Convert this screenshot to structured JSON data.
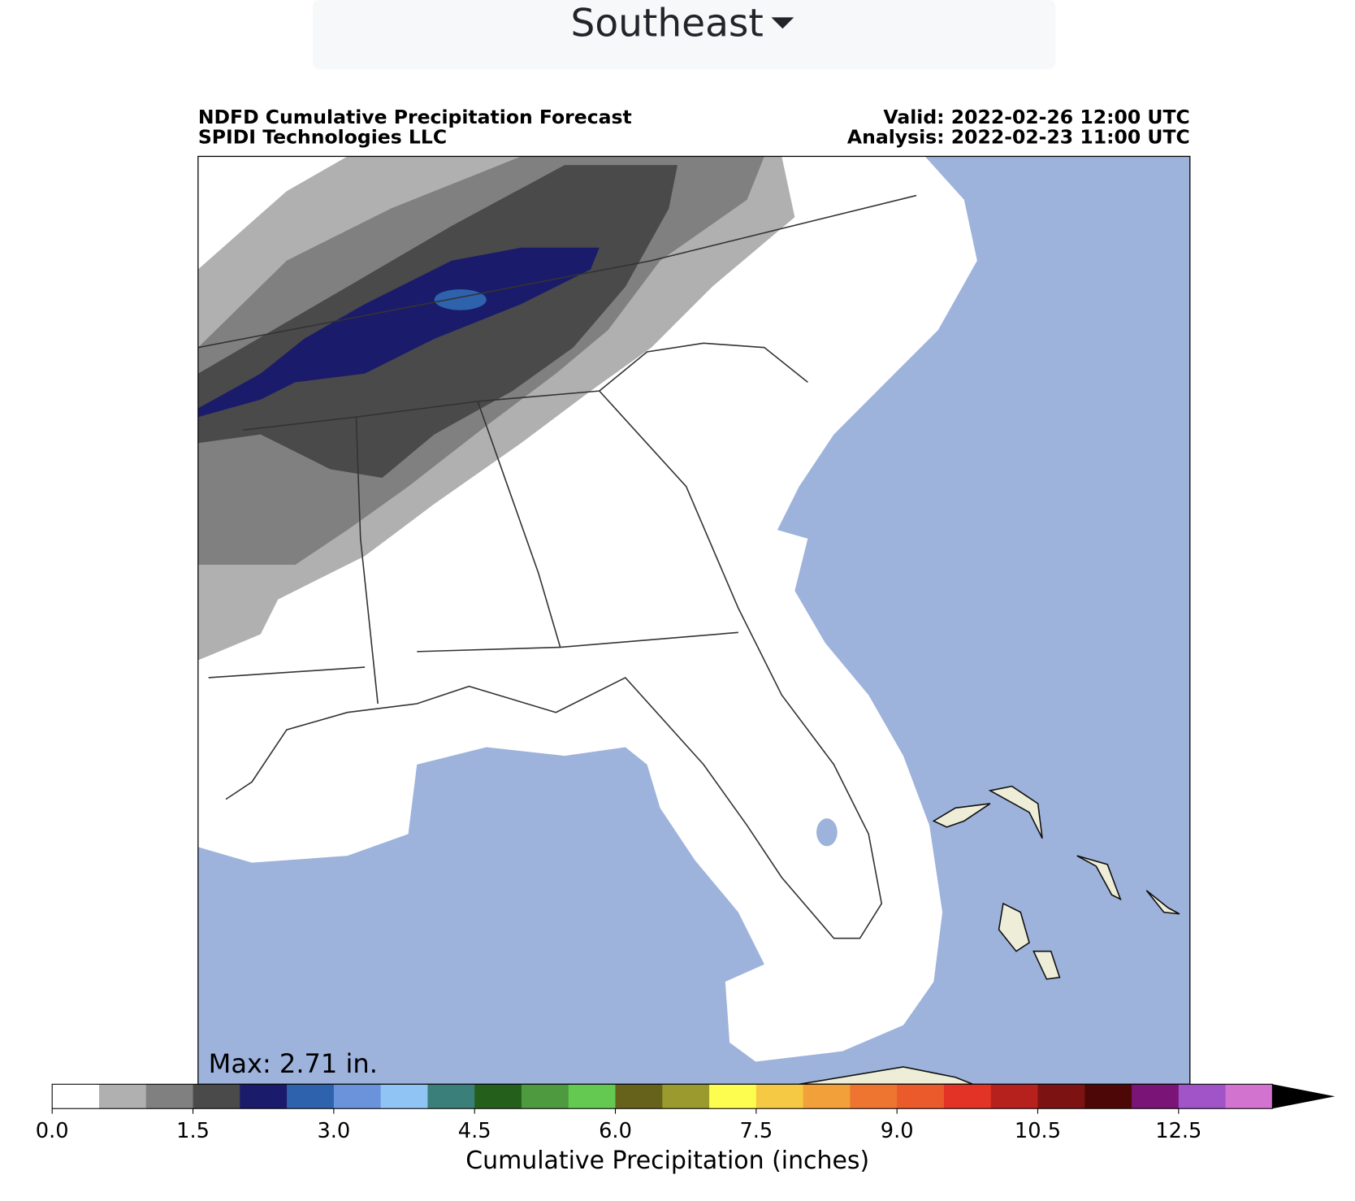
{
  "dropdown": {
    "label": "Southeast"
  },
  "map": {
    "title": "NDFD Cumulative Precipitation Forecast",
    "subtitle": "SPIDI Technologies LLC",
    "valid": "Valid: 2022-02-26 12:00 UTC",
    "analysis": "Analysis: 2022-02-23 11:00 UTC",
    "max_label": "Max: 2.71 in."
  },
  "colorbar": {
    "label": "Cumulative Precipitation (inches)",
    "colors": [
      "#ffffff",
      "#b0b0b0",
      "#808080",
      "#4a4a4a",
      "#1b1b6b",
      "#2e62ad",
      "#6a93dc",
      "#8fc4f5",
      "#3a7f7a",
      "#24601b",
      "#4e9a3e",
      "#64c951",
      "#67621b",
      "#9a9a2e",
      "#fdfd50",
      "#f5c944",
      "#f2a03a",
      "#ee7530",
      "#ea5a2a",
      "#e33326",
      "#b7211d",
      "#7d1212",
      "#4e0707",
      "#7a1476",
      "#a153c8",
      "#d274cf"
    ],
    "ticks": [
      {
        "value": 0,
        "label": "0.0"
      },
      1.5,
      {
        "value": 3,
        "label": "3.0"
      },
      4.5,
      {
        "value": 6,
        "label": "6.0"
      },
      7.5,
      {
        "value": 9,
        "label": "9.0"
      },
      10.5,
      12.5
    ],
    "extend": "max"
  }
}
